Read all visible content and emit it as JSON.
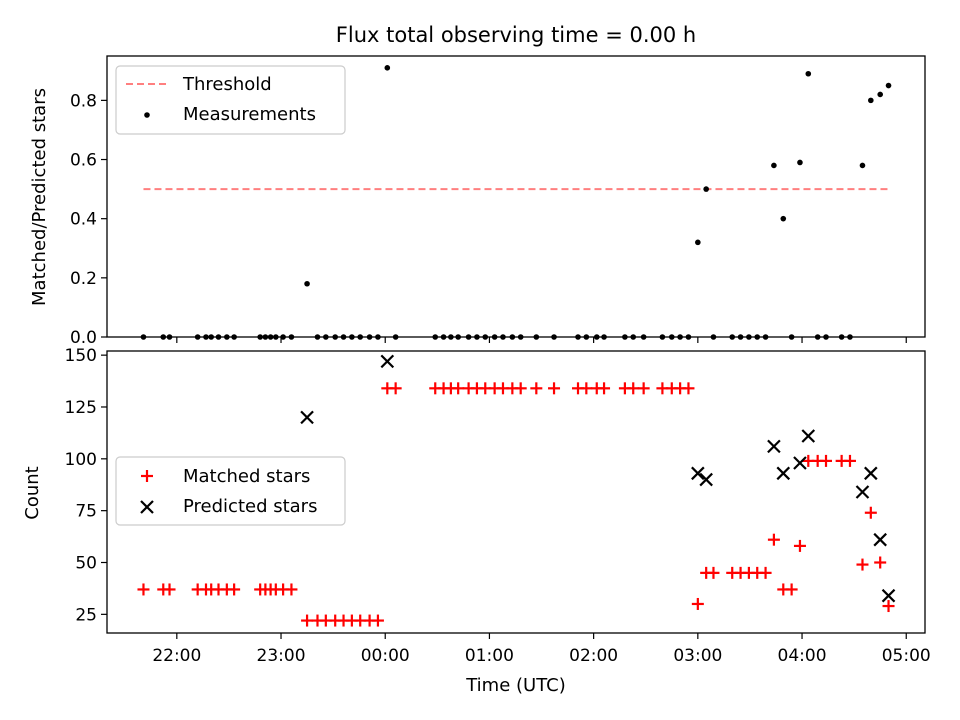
{
  "figure": {
    "title": "Flux total observing time = 0.00 h",
    "xlabel": "Time (UTC)",
    "xticks": [
      {
        "t": 22.0,
        "label": "22:00"
      },
      {
        "t": 23.0,
        "label": "23:00"
      },
      {
        "t": 24.0,
        "label": "00:00"
      },
      {
        "t": 25.0,
        "label": "01:00"
      },
      {
        "t": 26.0,
        "label": "02:00"
      },
      {
        "t": 27.0,
        "label": "03:00"
      },
      {
        "t": 28.0,
        "label": "04:00"
      },
      {
        "t": 29.0,
        "label": "05:00"
      }
    ],
    "xlim": [
      21.33,
      29.18
    ]
  },
  "chart_data": [
    {
      "type": "scatter",
      "ylabel": "Matched/Predicted stars",
      "ylim": [
        0,
        0.95
      ],
      "yticks": [
        0.0,
        0.2,
        0.4,
        0.6,
        0.8
      ],
      "legend_position": "top-left",
      "series": [
        {
          "name": "Threshold",
          "kind": "dashed-line",
          "color": "#ff7f7f",
          "x": [
            21.68,
            28.82
          ],
          "y": [
            0.5,
            0.5
          ]
        },
        {
          "name": "Measurements",
          "kind": "dots",
          "color": "#000000",
          "points": [
            [
              21.68,
              0
            ],
            [
              21.87,
              0
            ],
            [
              21.93,
              0
            ],
            [
              22.2,
              0
            ],
            [
              22.28,
              0
            ],
            [
              22.33,
              0
            ],
            [
              22.4,
              0
            ],
            [
              22.48,
              0
            ],
            [
              22.55,
              0
            ],
            [
              22.8,
              0
            ],
            [
              22.85,
              0
            ],
            [
              22.9,
              0
            ],
            [
              22.95,
              0
            ],
            [
              23.02,
              0
            ],
            [
              23.1,
              0
            ],
            [
              23.25,
              0.18
            ],
            [
              23.35,
              0
            ],
            [
              23.43,
              0
            ],
            [
              23.52,
              0
            ],
            [
              23.6,
              0
            ],
            [
              23.68,
              0
            ],
            [
              23.76,
              0
            ],
            [
              23.85,
              0
            ],
            [
              23.93,
              0
            ],
            [
              24.02,
              0.91
            ],
            [
              24.1,
              0
            ],
            [
              24.48,
              0
            ],
            [
              24.56,
              0
            ],
            [
              24.63,
              0
            ],
            [
              24.7,
              0
            ],
            [
              24.8,
              0
            ],
            [
              24.88,
              0
            ],
            [
              24.96,
              0
            ],
            [
              25.05,
              0
            ],
            [
              25.13,
              0
            ],
            [
              25.22,
              0
            ],
            [
              25.3,
              0
            ],
            [
              25.45,
              0
            ],
            [
              25.62,
              0
            ],
            [
              25.85,
              0
            ],
            [
              25.93,
              0
            ],
            [
              26.03,
              0
            ],
            [
              26.1,
              0
            ],
            [
              26.3,
              0
            ],
            [
              26.38,
              0
            ],
            [
              26.48,
              0
            ],
            [
              26.66,
              0
            ],
            [
              26.75,
              0
            ],
            [
              26.83,
              0
            ],
            [
              26.91,
              0
            ],
            [
              27.0,
              0.32
            ],
            [
              27.08,
              0.5
            ],
            [
              27.15,
              0
            ],
            [
              27.33,
              0
            ],
            [
              27.41,
              0
            ],
            [
              27.49,
              0
            ],
            [
              27.57,
              0
            ],
            [
              27.65,
              0
            ],
            [
              27.73,
              0.58
            ],
            [
              27.82,
              0.4
            ],
            [
              27.9,
              0
            ],
            [
              27.98,
              0.59
            ],
            [
              28.06,
              0.89
            ],
            [
              28.15,
              0
            ],
            [
              28.23,
              0
            ],
            [
              28.38,
              0
            ],
            [
              28.46,
              0
            ],
            [
              28.58,
              0.58
            ],
            [
              28.66,
              0.8
            ],
            [
              28.75,
              0.82
            ],
            [
              28.83,
              0.85
            ]
          ]
        }
      ]
    },
    {
      "type": "scatter",
      "ylabel": "Count",
      "ylim": [
        16,
        152
      ],
      "yticks": [
        25,
        50,
        75,
        100,
        125,
        150
      ],
      "legend_position": "center-left",
      "series": [
        {
          "name": "Matched stars",
          "kind": "plus",
          "color": "#ff0000",
          "points": [
            [
              21.68,
              37
            ],
            [
              21.87,
              37
            ],
            [
              21.93,
              37
            ],
            [
              22.2,
              37
            ],
            [
              22.28,
              37
            ],
            [
              22.33,
              37
            ],
            [
              22.4,
              37
            ],
            [
              22.48,
              37
            ],
            [
              22.55,
              37
            ],
            [
              22.8,
              37
            ],
            [
              22.85,
              37
            ],
            [
              22.9,
              37
            ],
            [
              22.95,
              37
            ],
            [
              23.02,
              37
            ],
            [
              23.1,
              37
            ],
            [
              23.25,
              22
            ],
            [
              23.35,
              22
            ],
            [
              23.43,
              22
            ],
            [
              23.52,
              22
            ],
            [
              23.6,
              22
            ],
            [
              23.68,
              22
            ],
            [
              23.76,
              22
            ],
            [
              23.85,
              22
            ],
            [
              23.93,
              22
            ],
            [
              24.02,
              134
            ],
            [
              24.1,
              134
            ],
            [
              24.48,
              134
            ],
            [
              24.56,
              134
            ],
            [
              24.63,
              134
            ],
            [
              24.7,
              134
            ],
            [
              24.8,
              134
            ],
            [
              24.88,
              134
            ],
            [
              24.96,
              134
            ],
            [
              25.05,
              134
            ],
            [
              25.13,
              134
            ],
            [
              25.22,
              134
            ],
            [
              25.3,
              134
            ],
            [
              25.45,
              134
            ],
            [
              25.62,
              134
            ],
            [
              25.85,
              134
            ],
            [
              25.93,
              134
            ],
            [
              26.03,
              134
            ],
            [
              26.1,
              134
            ],
            [
              26.3,
              134
            ],
            [
              26.38,
              134
            ],
            [
              26.48,
              134
            ],
            [
              26.66,
              134
            ],
            [
              26.75,
              134
            ],
            [
              26.83,
              134
            ],
            [
              26.91,
              134
            ],
            [
              27.0,
              30
            ],
            [
              27.08,
              45
            ],
            [
              27.15,
              45
            ],
            [
              27.33,
              45
            ],
            [
              27.41,
              45
            ],
            [
              27.49,
              45
            ],
            [
              27.57,
              45
            ],
            [
              27.65,
              45
            ],
            [
              27.73,
              61
            ],
            [
              27.82,
              37
            ],
            [
              27.9,
              37
            ],
            [
              27.98,
              58
            ],
            [
              28.06,
              99
            ],
            [
              28.15,
              99
            ],
            [
              28.23,
              99
            ],
            [
              28.38,
              99
            ],
            [
              28.46,
              99
            ],
            [
              28.58,
              49
            ],
            [
              28.66,
              74
            ],
            [
              28.75,
              50
            ],
            [
              28.83,
              29
            ]
          ]
        },
        {
          "name": "Predicted stars",
          "kind": "x",
          "color": "#000000",
          "points": [
            [
              23.25,
              120
            ],
            [
              24.02,
              147
            ],
            [
              27.0,
              93
            ],
            [
              27.08,
              90
            ],
            [
              27.73,
              106
            ],
            [
              27.82,
              93
            ],
            [
              27.98,
              98
            ],
            [
              28.06,
              111
            ],
            [
              28.58,
              84
            ],
            [
              28.66,
              93
            ],
            [
              28.75,
              61
            ],
            [
              28.83,
              34
            ]
          ]
        }
      ]
    }
  ]
}
